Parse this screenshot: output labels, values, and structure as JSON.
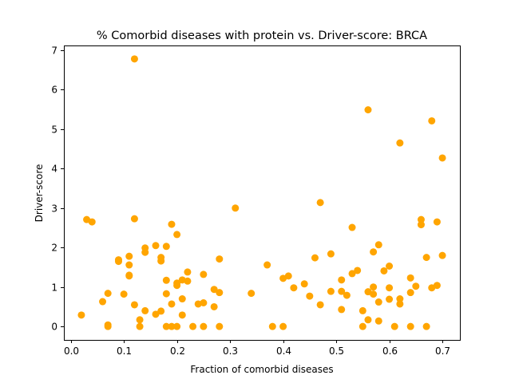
{
  "chart_data": {
    "type": "scatter",
    "title": "% Comorbid diseases with protein vs. Driver-score: BRCA",
    "xlabel": "Fraction of comorbid diseases",
    "ylabel": "Driver-score",
    "xlim": [
      -0.013,
      0.733
    ],
    "ylim": [
      -0.34,
      7.12
    ],
    "xticks": [
      0.0,
      0.1,
      0.2,
      0.3,
      0.4,
      0.5,
      0.6,
      0.7
    ],
    "xtick_labels": [
      "0.0",
      "0.1",
      "0.2",
      "0.3",
      "0.4",
      "0.5",
      "0.6",
      "0.7"
    ],
    "yticks": [
      0,
      1,
      2,
      3,
      4,
      5,
      6,
      7
    ],
    "ytick_labels": [
      "0",
      "1",
      "2",
      "3",
      "4",
      "5",
      "6",
      "7"
    ],
    "grid": false,
    "marker_color": "#ffa500",
    "points": [
      [
        0.02,
        0.29
      ],
      [
        0.03,
        2.71
      ],
      [
        0.04,
        2.65
      ],
      [
        0.06,
        0.63
      ],
      [
        0.07,
        0.84
      ],
      [
        0.07,
        0.04
      ],
      [
        0.07,
        0.0
      ],
      [
        0.09,
        1.69
      ],
      [
        0.09,
        1.65
      ],
      [
        0.1,
        0.82
      ],
      [
        0.11,
        1.78
      ],
      [
        0.11,
        1.56
      ],
      [
        0.11,
        1.3
      ],
      [
        0.11,
        1.28
      ],
      [
        0.12,
        6.78
      ],
      [
        0.12,
        2.73
      ],
      [
        0.12,
        0.55
      ],
      [
        0.13,
        0.17
      ],
      [
        0.13,
        0.0
      ],
      [
        0.14,
        1.99
      ],
      [
        0.14,
        1.88
      ],
      [
        0.14,
        0.4
      ],
      [
        0.16,
        2.05
      ],
      [
        0.16,
        0.31
      ],
      [
        0.17,
        1.75
      ],
      [
        0.17,
        1.66
      ],
      [
        0.17,
        0.39
      ],
      [
        0.18,
        2.03
      ],
      [
        0.18,
        1.17
      ],
      [
        0.18,
        0.83
      ],
      [
        0.18,
        0.0
      ],
      [
        0.19,
        2.59
      ],
      [
        0.19,
        0.57
      ],
      [
        0.19,
        0.0
      ],
      [
        0.2,
        2.33
      ],
      [
        0.2,
        1.1
      ],
      [
        0.2,
        1.04
      ],
      [
        0.2,
        0.0
      ],
      [
        0.21,
        1.18
      ],
      [
        0.21,
        0.7
      ],
      [
        0.21,
        0.29
      ],
      [
        0.22,
        1.38
      ],
      [
        0.22,
        1.15
      ],
      [
        0.23,
        0.0
      ],
      [
        0.24,
        0.57
      ],
      [
        0.25,
        1.32
      ],
      [
        0.25,
        0.6
      ],
      [
        0.25,
        0.0
      ],
      [
        0.27,
        0.94
      ],
      [
        0.27,
        0.5
      ],
      [
        0.28,
        1.71
      ],
      [
        0.28,
        0.86
      ],
      [
        0.28,
        0.0
      ],
      [
        0.31,
        3.0
      ],
      [
        0.34,
        0.84
      ],
      [
        0.37,
        1.56
      ],
      [
        0.38,
        0.0
      ],
      [
        0.4,
        1.22
      ],
      [
        0.4,
        0.0
      ],
      [
        0.41,
        1.28
      ],
      [
        0.42,
        0.98
      ],
      [
        0.44,
        1.08
      ],
      [
        0.45,
        0.77
      ],
      [
        0.46,
        1.74
      ],
      [
        0.47,
        3.14
      ],
      [
        0.47,
        0.55
      ],
      [
        0.49,
        1.84
      ],
      [
        0.49,
        0.89
      ],
      [
        0.51,
        1.18
      ],
      [
        0.51,
        0.89
      ],
      [
        0.51,
        0.43
      ],
      [
        0.52,
        0.79
      ],
      [
        0.53,
        2.51
      ],
      [
        0.53,
        1.34
      ],
      [
        0.54,
        1.42
      ],
      [
        0.55,
        0.4
      ],
      [
        0.55,
        0.0
      ],
      [
        0.56,
        5.49
      ],
      [
        0.56,
        0.88
      ],
      [
        0.56,
        0.17
      ],
      [
        0.57,
        1.89
      ],
      [
        0.57,
        1.0
      ],
      [
        0.57,
        0.82
      ],
      [
        0.58,
        2.07
      ],
      [
        0.58,
        0.62
      ],
      [
        0.58,
        0.14
      ],
      [
        0.59,
        1.41
      ],
      [
        0.6,
        1.53
      ],
      [
        0.6,
        0.98
      ],
      [
        0.6,
        0.69
      ],
      [
        0.61,
        0.0
      ],
      [
        0.62,
        4.65
      ],
      [
        0.62,
        0.7
      ],
      [
        0.62,
        0.57
      ],
      [
        0.64,
        1.23
      ],
      [
        0.64,
        0.86
      ],
      [
        0.64,
        0.0
      ],
      [
        0.65,
        1.02
      ],
      [
        0.66,
        2.71
      ],
      [
        0.66,
        2.58
      ],
      [
        0.67,
        1.75
      ],
      [
        0.67,
        0.0
      ],
      [
        0.68,
        5.21
      ],
      [
        0.68,
        0.98
      ],
      [
        0.69,
        2.65
      ],
      [
        0.69,
        1.04
      ],
      [
        0.7,
        4.27
      ],
      [
        0.7,
        1.8
      ]
    ]
  }
}
